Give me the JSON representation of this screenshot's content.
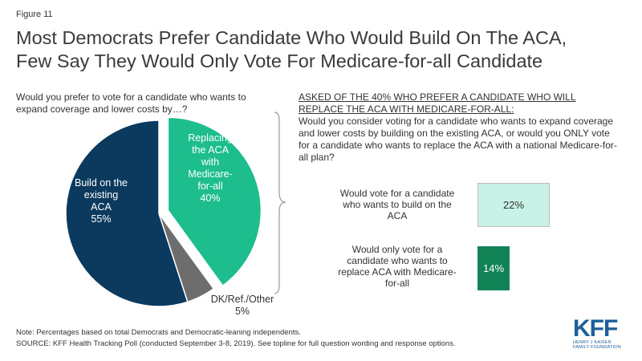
{
  "figure_label": "Figure 11",
  "title": {
    "line1": "Most Democrats Prefer Candidate Who Would Build On The ACA,",
    "line2": "Few Say They Would Only Vote For Medicare-for-all Candidate"
  },
  "pie_question": "Would you prefer to vote for a candidate who wants to expand coverage and lower costs by…?",
  "right_panel": {
    "asked_of": "ASKED OF THE 40% WHO PREFER A CANDIDATE  WHO WILL\nREPLACE THE ACA WITH MEDICARE-FOR-ALL:",
    "question": "Would you consider voting for a candidate who wants to expand coverage and lower costs by building  on the existing ACA, or would you ONLY vote for a candidate who wants to replace the ACA with a national Medicare-for-all plan?"
  },
  "chart_data": [
    {
      "type": "pie",
      "slices": [
        {
          "label_lines": [
            "Build on the",
            "existing",
            "ACA"
          ],
          "value": 55,
          "value_label": "55%",
          "color": "#0b3a5e",
          "text_color": "#ffffff"
        },
        {
          "label_lines": [
            "Replacing",
            "the ACA",
            "with",
            "Medicare-",
            "for-all"
          ],
          "value": 40,
          "value_label": "40%",
          "color": "#1dbd8e",
          "text_color": "#ffffff",
          "exploded": true
        },
        {
          "label_lines": [
            "DK/Ref./Other"
          ],
          "value": 5,
          "value_label": "5%",
          "color": "#6d6d6d",
          "text_color": "#333333"
        }
      ]
    },
    {
      "type": "bar",
      "categories": [
        "Would vote for a candidate who wants to build on the ACA",
        "Would only vote for a candidate who wants to replace ACA with Medicare-for-all"
      ],
      "values": [
        22,
        14
      ],
      "value_labels": [
        "22%",
        "14%"
      ],
      "colors": [
        "#c8f2e6",
        "#128257"
      ],
      "text_colors": [
        "#333333",
        "#ffffff"
      ]
    }
  ],
  "bars": [
    {
      "label": "Would vote for a candidate who wants to build on the ACA",
      "value_label": "22%"
    },
    {
      "label": "Would only vote for a candidate who wants to replace ACA with Medicare-for-all",
      "value_label": "14%"
    }
  ],
  "notes": {
    "line1": "Note: Percentages based on total Democrats and Democratic-leaning independents.",
    "line2": "SOURCE: KFF Health Tracking Poll (conducted September 3-8, 2019). See topline for full question wording and response options."
  },
  "logo": {
    "text": "KFF",
    "sub_line1": "HENRY J KAISER",
    "sub_line2": "FAMILY FOUNDATION"
  }
}
